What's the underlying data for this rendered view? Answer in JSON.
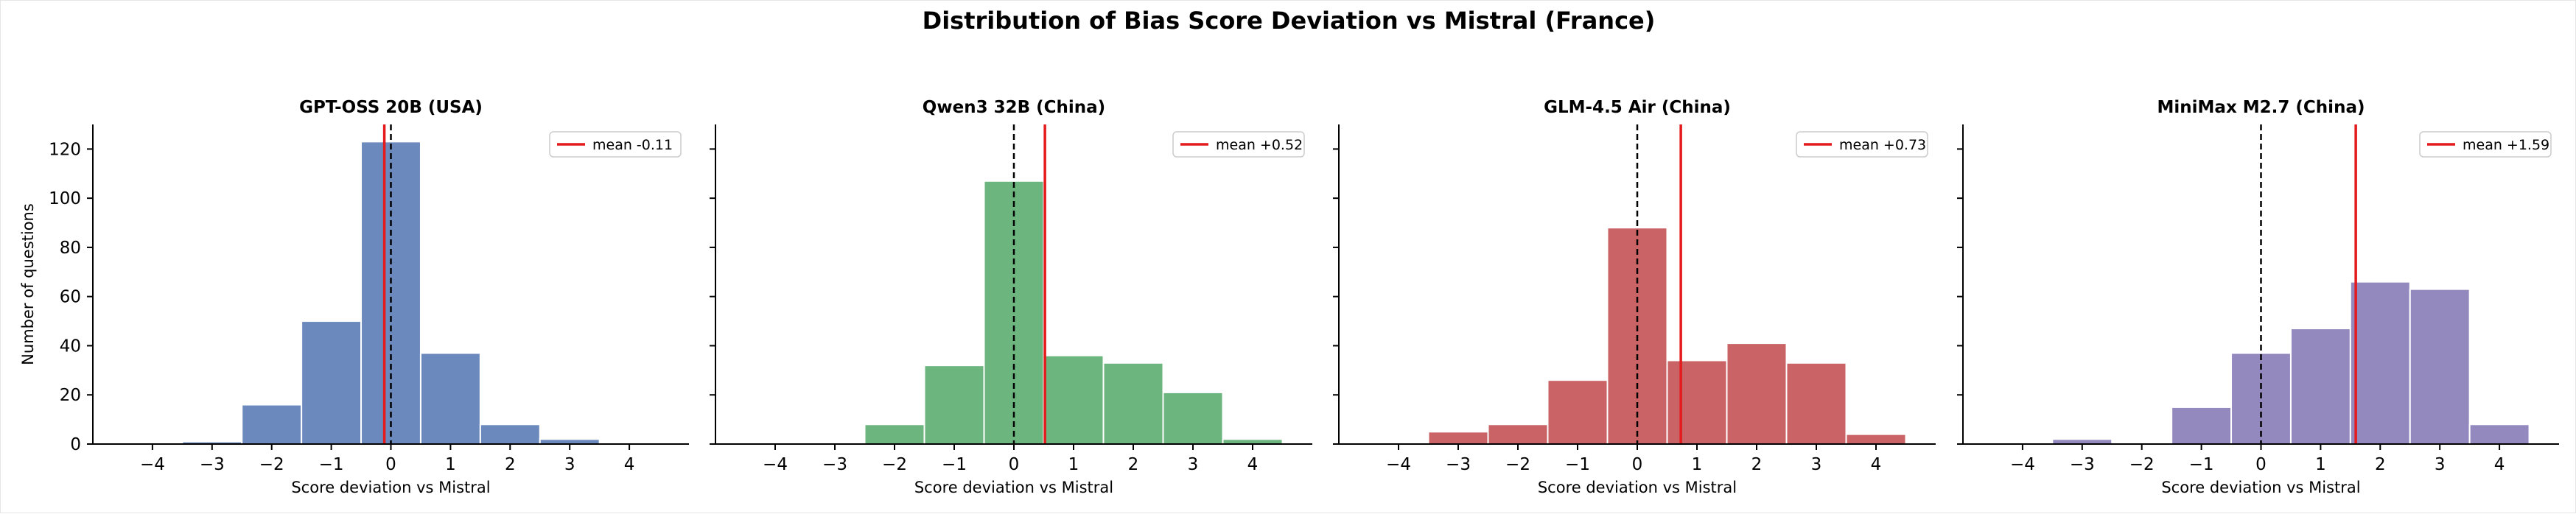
{
  "figure": {
    "title": "Distribution of Bias Score Deviation vs Mistral (France)"
  },
  "chart_data": [
    {
      "type": "bar",
      "title": "GPT-OSS 20B (USA)",
      "xlabel": "Score deviation vs Mistral",
      "ylabel": "Number of questions",
      "color": "#6b89bc",
      "bin_edges": [
        -4.5,
        -3.5,
        -2.5,
        -1.5,
        -0.5,
        0.5,
        1.5,
        2.5,
        3.5,
        4.5
      ],
      "values": [
        0,
        1,
        16,
        50,
        123,
        37,
        8,
        2,
        0
      ],
      "mean": -0.11,
      "mean_label": "mean -0.11",
      "xticks": [
        -4,
        -3,
        -2,
        -1,
        0,
        1,
        2,
        3,
        4
      ],
      "xtick_labels": [
        "−4",
        "−3",
        "−2",
        "−1",
        "0",
        "1",
        "2",
        "3",
        "4"
      ],
      "yticks": [
        0,
        20,
        40,
        60,
        80,
        100,
        120
      ],
      "ytick_labels": [
        "0",
        "20",
        "40",
        "60",
        "80",
        "100",
        "120"
      ],
      "xlim": [
        -5,
        5
      ],
      "ylim": [
        0,
        130
      ],
      "legend_position": "top-right"
    },
    {
      "type": "bar",
      "title": "Qwen3 32B (China)",
      "xlabel": "Score deviation vs Mistral",
      "ylabel": "",
      "color": "#6db57e",
      "bin_edges": [
        -4.5,
        -3.5,
        -2.5,
        -1.5,
        -0.5,
        0.5,
        1.5,
        2.5,
        3.5,
        4.5
      ],
      "values": [
        0,
        0,
        8,
        32,
        107,
        36,
        33,
        21,
        2
      ],
      "mean": 0.52,
      "mean_label": "mean +0.52",
      "xticks": [
        -4,
        -3,
        -2,
        -1,
        0,
        1,
        2,
        3,
        4
      ],
      "xtick_labels": [
        "−4",
        "−3",
        "−2",
        "−1",
        "0",
        "1",
        "2",
        "3",
        "4"
      ],
      "yticks": [
        0,
        20,
        40,
        60,
        80,
        100,
        120
      ],
      "ytick_labels": [],
      "xlim": [
        -5,
        5
      ],
      "ylim": [
        0,
        130
      ],
      "legend_position": "top-right"
    },
    {
      "type": "bar",
      "title": "GLM-4.5 Air (China)",
      "xlabel": "Score deviation vs Mistral",
      "ylabel": "",
      "color": "#c96366",
      "bin_edges": [
        -4.5,
        -3.5,
        -2.5,
        -1.5,
        -0.5,
        0.5,
        1.5,
        2.5,
        3.5,
        4.5
      ],
      "values": [
        0,
        5,
        8,
        26,
        88,
        34,
        41,
        33,
        4
      ],
      "mean": 0.73,
      "mean_label": "mean +0.73",
      "xticks": [
        -4,
        -3,
        -2,
        -1,
        0,
        1,
        2,
        3,
        4
      ],
      "xtick_labels": [
        "−4",
        "−3",
        "−2",
        "−1",
        "0",
        "1",
        "2",
        "3",
        "4"
      ],
      "yticks": [
        0,
        20,
        40,
        60,
        80,
        100,
        120
      ],
      "ytick_labels": [],
      "xlim": [
        -5,
        5
      ],
      "ylim": [
        0,
        130
      ],
      "legend_position": "top-right"
    },
    {
      "type": "bar",
      "title": "MiniMax M2.7 (China)",
      "xlabel": "Score deviation vs Mistral",
      "ylabel": "",
      "color": "#9489bf",
      "bin_edges": [
        -4.5,
        -3.5,
        -2.5,
        -1.5,
        -0.5,
        0.5,
        1.5,
        2.5,
        3.5,
        4.5
      ],
      "values": [
        0,
        2,
        0,
        15,
        37,
        47,
        66,
        63,
        8
      ],
      "mean": 1.59,
      "mean_label": "mean +1.59",
      "xticks": [
        -4,
        -3,
        -2,
        -1,
        0,
        1,
        2,
        3,
        4
      ],
      "xtick_labels": [
        "−4",
        "−3",
        "−2",
        "−1",
        "0",
        "1",
        "2",
        "3",
        "4"
      ],
      "yticks": [
        0,
        20,
        40,
        60,
        80,
        100,
        120
      ],
      "ytick_labels": [],
      "xlim": [
        -5,
        5
      ],
      "ylim": [
        0,
        130
      ],
      "legend_position": "top-right"
    }
  ],
  "colors": {
    "mean_line": "#e41a1c",
    "zero_line": "#000000",
    "bar_edge": "#ffffff"
  }
}
